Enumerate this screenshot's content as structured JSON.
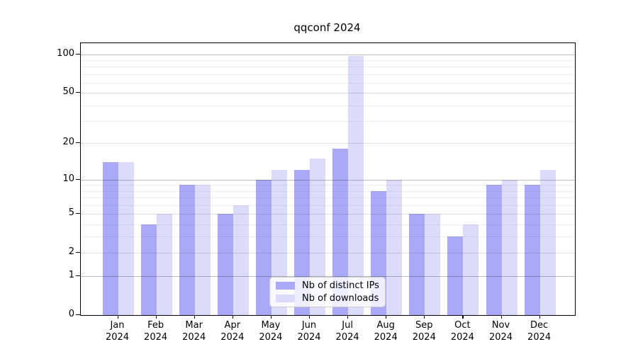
{
  "chart_data": {
    "type": "bar",
    "title": "qqconf 2024",
    "categories": [
      "Jan",
      "Feb",
      "Mar",
      "Apr",
      "May",
      "Jun",
      "Jul",
      "Aug",
      "Sep",
      "Oct",
      "Nov",
      "Dec"
    ],
    "x_tick_year": "2024",
    "series": [
      {
        "name": "Nb of distinct IPs",
        "color": "#a9a9f7",
        "values": [
          14,
          4,
          9,
          5,
          10,
          12,
          18,
          8,
          5,
          3,
          9,
          9
        ]
      },
      {
        "name": "Nb of downloads",
        "color": "#dcdcfa",
        "values": [
          14,
          5,
          9,
          6,
          12,
          15,
          97,
          10,
          5,
          4,
          10,
          12
        ]
      }
    ],
    "xlabel": "",
    "ylabel": "",
    "y_scale": "log1p",
    "ylim": [
      0,
      122
    ],
    "y_ticks": [
      100,
      50,
      20,
      10,
      5,
      2,
      1,
      0
    ],
    "y_grid": {
      "major": [
        1,
        10,
        100
      ],
      "mid": [
        2,
        5,
        20,
        50
      ],
      "minor": [
        3,
        4,
        6,
        7,
        8,
        9,
        30,
        40,
        60,
        70,
        80,
        90
      ]
    },
    "grid": true,
    "legend_position": "bottom-center"
  }
}
